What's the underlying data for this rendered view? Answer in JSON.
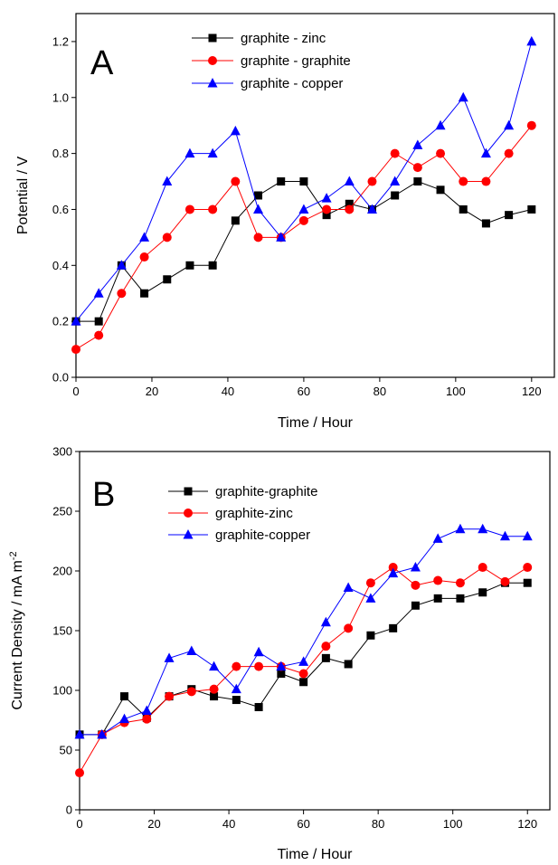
{
  "chart_data": [
    {
      "type": "line",
      "panel_label": "A",
      "xlabel": "Time / Hour",
      "ylabel": "Potential / V",
      "xlim": [
        0,
        126
      ],
      "ylim": [
        0,
        1.3
      ],
      "xticks": [
        0,
        20,
        40,
        60,
        80,
        100,
        120
      ],
      "yticks": [
        0.0,
        0.2,
        0.4,
        0.6,
        0.8,
        1.0,
        1.2
      ],
      "ytick_labels": [
        "0.0",
        "0.2",
        "0.4",
        "0.6",
        "0.8",
        "1.0",
        "1.2"
      ],
      "grid": false,
      "legend_position": "top-center",
      "series": [
        {
          "name": "graphite - zinc",
          "color": "#000000",
          "marker": "square",
          "x": [
            0,
            6,
            12,
            18,
            24,
            30,
            36,
            42,
            48,
            54,
            60,
            66,
            72,
            78,
            84,
            90,
            96,
            102,
            108,
            114,
            120
          ],
          "y": [
            0.2,
            0.2,
            0.4,
            0.3,
            0.35,
            0.4,
            0.4,
            0.56,
            0.65,
            0.7,
            0.7,
            0.58,
            0.62,
            0.6,
            0.65,
            0.7,
            0.67,
            0.6,
            0.55,
            0.58,
            0.6
          ]
        },
        {
          "name": "graphite - graphite",
          "color": "#ff0000",
          "marker": "circle",
          "x": [
            0,
            6,
            12,
            18,
            24,
            30,
            36,
            42,
            48,
            54,
            60,
            66,
            72,
            78,
            84,
            90,
            96,
            102,
            108,
            114,
            120
          ],
          "y": [
            0.1,
            0.15,
            0.3,
            0.43,
            0.5,
            0.6,
            0.6,
            0.7,
            0.5,
            0.5,
            0.56,
            0.6,
            0.6,
            0.7,
            0.8,
            0.75,
            0.8,
            0.7,
            0.7,
            0.8,
            0.9
          ]
        },
        {
          "name": "graphite - copper",
          "color": "#0000ff",
          "marker": "triangle",
          "x": [
            0,
            6,
            12,
            18,
            24,
            30,
            36,
            42,
            48,
            54,
            60,
            66,
            72,
            78,
            84,
            90,
            96,
            102,
            108,
            114,
            120
          ],
          "y": [
            0.2,
            0.3,
            0.4,
            0.5,
            0.7,
            0.8,
            0.8,
            0.88,
            0.6,
            0.5,
            0.6,
            0.64,
            0.7,
            0.6,
            0.7,
            0.83,
            0.9,
            1.0,
            0.8,
            0.9,
            1.2
          ]
        }
      ]
    },
    {
      "type": "line",
      "panel_label": "B",
      "xlabel": "Time / Hour",
      "ylabel": "Current Density / mA m",
      "ylabel_superscript": "-2",
      "xlim": [
        0,
        126
      ],
      "ylim": [
        0,
        300
      ],
      "xticks": [
        0,
        20,
        40,
        60,
        80,
        100,
        120
      ],
      "yticks": [
        0,
        50,
        100,
        150,
        200,
        250,
        300
      ],
      "ytick_labels": [
        "0",
        "50",
        "100",
        "150",
        "200",
        "250",
        "300"
      ],
      "grid": false,
      "legend_position": "top-center",
      "series": [
        {
          "name": "graphite-graphite",
          "color": "#000000",
          "marker": "square",
          "x": [
            0,
            6,
            12,
            18,
            24,
            30,
            36,
            42,
            48,
            54,
            60,
            66,
            72,
            78,
            84,
            90,
            96,
            102,
            108,
            114,
            120
          ],
          "y": [
            63,
            63,
            95,
            77,
            95,
            101,
            95,
            92,
            86,
            114,
            107,
            127,
            122,
            146,
            152,
            171,
            177,
            177,
            182,
            190,
            190
          ]
        },
        {
          "name": "graphite-zinc",
          "color": "#ff0000",
          "marker": "circle",
          "x": [
            0,
            6,
            12,
            18,
            24,
            30,
            36,
            42,
            48,
            54,
            60,
            66,
            72,
            78,
            84,
            90,
            96,
            102,
            108,
            114,
            120
          ],
          "y": [
            31,
            63,
            73,
            76,
            95,
            99,
            101,
            120,
            120,
            120,
            114,
            137,
            152,
            190,
            203,
            188,
            192,
            190,
            203,
            191,
            203
          ]
        },
        {
          "name": "graphite-copper",
          "color": "#0000ff",
          "marker": "triangle",
          "x": [
            0,
            6,
            12,
            18,
            24,
            30,
            36,
            42,
            48,
            54,
            60,
            66,
            72,
            78,
            84,
            90,
            96,
            102,
            108,
            114,
            120
          ],
          "y": [
            63,
            63,
            76,
            83,
            127,
            133,
            120,
            101,
            132,
            120,
            124,
            157,
            186,
            177,
            198,
            203,
            227,
            235,
            235,
            229,
            229
          ]
        }
      ]
    }
  ]
}
